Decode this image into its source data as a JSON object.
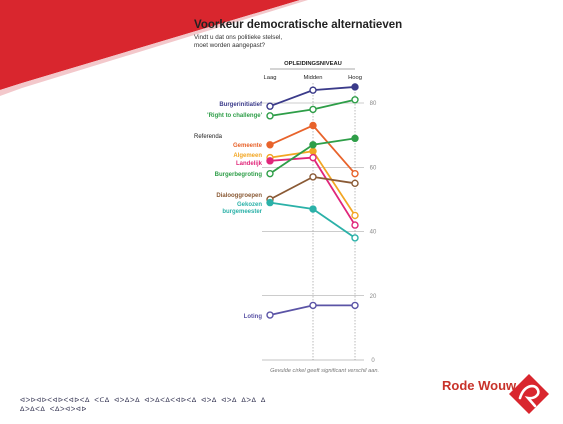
{
  "slide": {
    "footer_text": "ᐊᐳᐅᐊᐅᐸᐊᐅᐸᐊᐅᐸᐃ ᐸᑕᐃ ᐊᐳᐃᐳᐃ ᐊᐳᐃᐸᐃᐸᐊᐅᐸᐃ ᐊᐳᐃ ᐊᐳᐃ ᐃᐳᐃ ᐃ ᐃᐳᐃᐸᐃ ᐸᐃᐳᐊᐳᐊᐅ",
    "logo_text": "Rode Wouw"
  },
  "colors": {
    "accent_red": "#d9262e",
    "grid": "#9a9a9a"
  },
  "chart_data": {
    "type": "line",
    "title": "Voorkeur democratische alternatieven",
    "subtitle_lines": [
      "Vindt u dat ons politieke stelsel,",
      "moet worden aangepast?"
    ],
    "corner_mark": "00",
    "header": "OPLEIDINGSNIVEAU",
    "categories": [
      "Laag",
      "Midden",
      "Hoog"
    ],
    "group_label": "Referenda",
    "ylim": [
      0,
      90
    ],
    "yticks": [
      0,
      20,
      40,
      60,
      80
    ],
    "grid": true,
    "footnote": "Gevulde cirkel geeft significant verschil aan.",
    "series": [
      {
        "name": "Burgerinitiatief",
        "color": "#3b3b8a",
        "values": [
          79,
          84,
          85
        ],
        "filled": [
          false,
          false,
          true
        ]
      },
      {
        "name": "'Right to challenge'",
        "color": "#2e9e48",
        "values": [
          76,
          78,
          81
        ],
        "filled": [
          false,
          false,
          false
        ]
      },
      {
        "name": "Gemeente",
        "color": "#e8632b",
        "values": [
          67,
          73,
          58
        ],
        "filled": [
          true,
          true,
          false
        ]
      },
      {
        "name": "Algemeen",
        "color": "#f2a623",
        "values": [
          63,
          65,
          45
        ],
        "filled": [
          false,
          true,
          false
        ]
      },
      {
        "name": "Landelijk",
        "color": "#e0267a",
        "values": [
          62,
          63,
          42
        ],
        "filled": [
          true,
          false,
          false
        ]
      },
      {
        "name": "Burgerbegroting",
        "color": "#2e9e48",
        "values": [
          58,
          67,
          69
        ],
        "filled": [
          false,
          true,
          true
        ]
      },
      {
        "name": "Dialooggroepen",
        "color": "#8a5a35",
        "values": [
          50,
          57,
          55
        ],
        "filled": [
          false,
          false,
          false
        ]
      },
      {
        "name": "Gekozen burgemeester",
        "color": "#2bb1a8",
        "values": [
          49,
          47,
          38
        ],
        "filled": [
          true,
          true,
          false
        ]
      },
      {
        "name": "Loting",
        "color": "#5b54a6",
        "values": [
          14,
          17,
          17
        ],
        "filled": [
          false,
          false,
          false
        ]
      }
    ]
  }
}
